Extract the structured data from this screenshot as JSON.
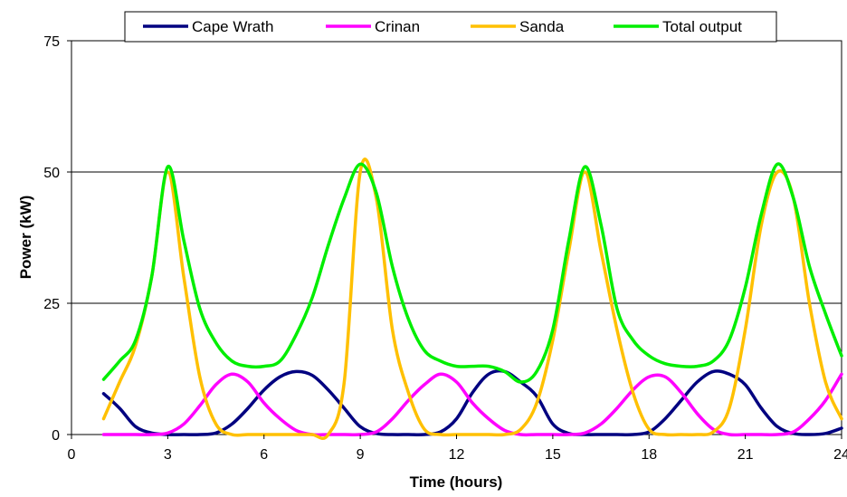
{
  "chart_data": {
    "type": "line",
    "title": "",
    "xlabel": "Time (hours)",
    "ylabel": "Power (kW)",
    "xlim": [
      0,
      24
    ],
    "ylim": [
      0,
      75
    ],
    "xticks": [
      "0",
      "3",
      "6",
      "9",
      "12",
      "15",
      "18",
      "21",
      "24"
    ],
    "yticks": [
      "0",
      "25",
      "50",
      "75"
    ],
    "grid": "horizontal",
    "legend_position": "top",
    "x": [
      1,
      1.5,
      2,
      2.5,
      3,
      3.5,
      4,
      4.5,
      5,
      5.5,
      6,
      6.5,
      7,
      7.5,
      8,
      8.5,
      9,
      9.5,
      10,
      10.5,
      11,
      11.5,
      12,
      12.5,
      13,
      13.5,
      14,
      14.5,
      15,
      15.5,
      16,
      16.5,
      17,
      17.5,
      18,
      18.5,
      19,
      19.5,
      20,
      20.5,
      21,
      21.5,
      22,
      22.5,
      23,
      23.5,
      24
    ],
    "series": [
      {
        "name": "Cape Wrath",
        "color": "#000080",
        "values": [
          7.8,
          5,
          1.5,
          0.3,
          0,
          0,
          0,
          0.3,
          2,
          5,
          8.5,
          11,
          12,
          11.3,
          8.5,
          5,
          1.5,
          0.2,
          0,
          0,
          0,
          0.5,
          3,
          8,
          11.5,
          12,
          10,
          7.3,
          2,
          0.2,
          0,
          0,
          0,
          0,
          0.5,
          3,
          6.5,
          10,
          12,
          11.5,
          9.5,
          5,
          1.5,
          0.2,
          0,
          0.2,
          1.2
        ]
      },
      {
        "name": "Crinan",
        "color": "#FF00FF",
        "values": [
          0,
          0,
          0,
          0,
          0.3,
          2,
          5.5,
          9.5,
          11.5,
          10,
          6,
          3,
          0.8,
          0,
          0,
          0,
          0,
          0.5,
          3,
          6.5,
          9.5,
          11.5,
          10,
          6,
          3,
          0.8,
          0,
          0,
          0,
          0,
          0.3,
          2,
          5,
          8.5,
          11,
          11,
          8,
          4,
          1,
          0,
          0,
          0,
          0,
          0.5,
          3,
          6.5,
          11.5
        ]
      },
      {
        "name": "Sanda",
        "color": "#FFC000",
        "values": [
          3,
          10,
          17,
          30,
          50,
          30,
          11,
          2,
          0,
          0,
          0,
          0,
          0,
          0,
          0,
          10,
          50,
          45,
          20,
          8,
          1,
          0,
          0,
          0,
          0,
          0,
          1,
          6,
          18,
          35,
          50,
          35,
          20,
          8,
          1,
          0,
          0,
          0,
          0.5,
          5,
          20,
          40,
          50,
          45,
          25,
          10,
          3
        ]
      },
      {
        "name": "Total output",
        "color": "#00EE00",
        "values": [
          10.5,
          14,
          18,
          30,
          51,
          37,
          24,
          17.5,
          14,
          13,
          13,
          14,
          19,
          26,
          36,
          45,
          51.5,
          46,
          32,
          22,
          16,
          14,
          13,
          13,
          13,
          12,
          10,
          12,
          20,
          37,
          51,
          40,
          24,
          18,
          15,
          13.5,
          13,
          13,
          14,
          18,
          28,
          42,
          51.5,
          45,
          32,
          23,
          15
        ]
      }
    ]
  }
}
